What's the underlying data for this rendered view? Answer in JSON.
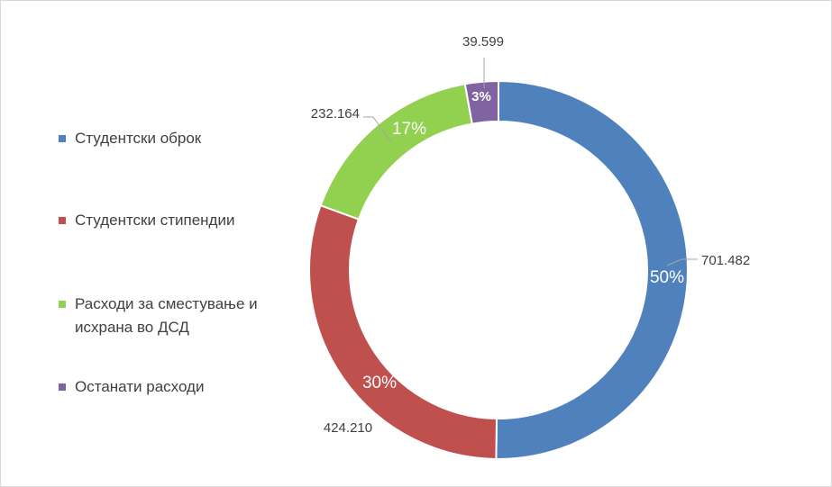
{
  "chart_data": {
    "type": "pie",
    "subtype": "doughnut",
    "legend_position": "left",
    "categories": [
      "Студентски оброк",
      "Студентски стипендии",
      "Расходи за сместување и исхрана во ДСД",
      "Останати расходи"
    ],
    "values": [
      701482,
      424210,
      232164,
      39599
    ],
    "value_labels": [
      "701.482",
      "424.210",
      "232.164",
      "39.599"
    ],
    "percent_labels": [
      "50%",
      "30%",
      "17%",
      "3%"
    ],
    "colors": [
      "#4f81bd",
      "#c0504d",
      "#92d050",
      "#8064a2"
    ]
  }
}
